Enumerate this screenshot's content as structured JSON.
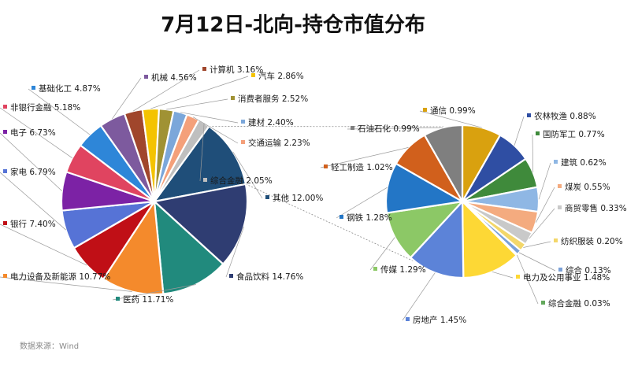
{
  "chart_data": {
    "type": "pie",
    "title": "7月12日-北向-持仓市值分布",
    "source_note": "数据来源：Wind",
    "pies": [
      {
        "slices": [
          {
            "label": "其他",
            "value": 12.0,
            "display": "12.00%",
            "color": "#1f4e79"
          },
          {
            "label": "食品饮料",
            "value": 14.76,
            "display": "14.76%",
            "color": "#2f3d72"
          },
          {
            "label": "医药",
            "value": 11.71,
            "display": "11.71%",
            "color": "#218a7d"
          },
          {
            "label": "电力设备及新能源",
            "value": 10.77,
            "display": "10.77%",
            "color": "#f48a2c"
          },
          {
            "label": "银行",
            "value": 7.4,
            "display": "7.40%",
            "color": "#c00f16"
          },
          {
            "label": "家电",
            "value": 6.79,
            "display": "6.79%",
            "color": "#5673d6"
          },
          {
            "label": "电子",
            "value": 6.73,
            "display": "6.73%",
            "color": "#7c22a5"
          },
          {
            "label": "非银行金融",
            "value": 5.18,
            "display": "5.18%",
            "color": "#e04460"
          },
          {
            "label": "基础化工",
            "value": 4.87,
            "display": "4.87%",
            "color": "#2e86d8"
          },
          {
            "label": "机械",
            "value": 4.56,
            "display": "4.56%",
            "color": "#7d5a9e"
          },
          {
            "label": "计算机",
            "value": 3.16,
            "display": "3.16%",
            "color": "#a0462c"
          },
          {
            "label": "汽车",
            "value": 2.86,
            "display": "2.86%",
            "color": "#f4c300"
          },
          {
            "label": "消费者服务",
            "value": 2.52,
            "display": "2.52%",
            "color": "#a09234"
          },
          {
            "label": "建材",
            "value": 2.4,
            "display": "2.40%",
            "color": "#7ba7da"
          },
          {
            "label": "交通运输",
            "value": 2.23,
            "display": "2.23%",
            "color": "#f4a07a"
          },
          {
            "label": "综合金融",
            "value": 2.05,
            "display": "2.05%",
            "color": "#bfbfbf"
          }
        ]
      },
      {
        "slices": [
          {
            "label": "通信",
            "value": 0.99,
            "display": "0.99%",
            "color": "#d9a10f"
          },
          {
            "label": "农林牧渔",
            "value": 0.88,
            "display": "0.88%",
            "color": "#2f4ea3"
          },
          {
            "label": "国防军工",
            "value": 0.77,
            "display": "0.77%",
            "color": "#3f8a3b"
          },
          {
            "label": "建筑",
            "value": 0.62,
            "display": "0.62%",
            "color": "#8fb7e4"
          },
          {
            "label": "煤炭",
            "value": 0.55,
            "display": "0.55%",
            "color": "#f4ab7f"
          },
          {
            "label": "商贸零售",
            "value": 0.33,
            "display": "0.33%",
            "color": "#c9c9c9"
          },
          {
            "label": "纺织服装",
            "value": 0.2,
            "display": "0.20%",
            "color": "#f3d76a"
          },
          {
            "label": "综合",
            "value": 0.13,
            "display": "0.13%",
            "color": "#7aa0d8"
          },
          {
            "label": "综合金融",
            "value": 0.03,
            "display": "0.03%",
            "color": "#63a85c"
          },
          {
            "label": "电力及公用事业",
            "value": 1.48,
            "display": "1.48%",
            "color": "#fdd835"
          },
          {
            "label": "房地产",
            "value": 1.45,
            "display": "1.45%",
            "color": "#5c83d8"
          },
          {
            "label": "传媒",
            "value": 1.29,
            "display": "1.29%",
            "color": "#8cc866"
          },
          {
            "label": "钢铁",
            "value": 1.28,
            "display": "1.28%",
            "color": "#2376c6"
          },
          {
            "label": "轻工制造",
            "value": 1.02,
            "display": "1.02%",
            "color": "#d1601c"
          },
          {
            "label": "石油石化",
            "value": 0.99,
            "display": "0.99%",
            "color": "#7f7f7f"
          }
        ]
      }
    ]
  }
}
